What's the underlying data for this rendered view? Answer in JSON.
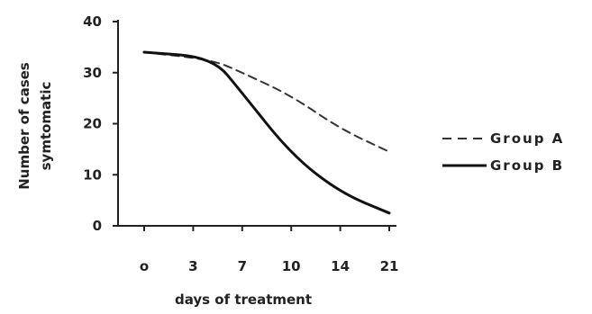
{
  "chart_data": {
    "type": "line",
    "xlabel": "days of treatment",
    "ylabel_lines": [
      "Number of cases",
      "symtomatic"
    ],
    "x_categories": [
      "o",
      "3",
      "7",
      "10",
      "14",
      "21"
    ],
    "ylim": [
      0,
      40
    ],
    "yticks": [
      "0",
      "10",
      "20",
      "30",
      "40"
    ],
    "grid": false,
    "legend_position": "right",
    "series": [
      {
        "name": "Group A",
        "style": "dashed",
        "color": "#333333",
        "points": [
          {
            "x": 0,
            "y": 34
          },
          {
            "x": 1.4,
            "y": 32.5
          },
          {
            "x": 2,
            "y": 30
          },
          {
            "x": 3,
            "y": 25.5
          },
          {
            "x": 4,
            "y": 19
          },
          {
            "x": 5,
            "y": 14.5
          }
        ]
      },
      {
        "name": "Group B",
        "style": "solid",
        "color": "#111111",
        "points": [
          {
            "x": 0,
            "y": 34
          },
          {
            "x": 1.4,
            "y": 33
          },
          {
            "x": 2,
            "y": 26
          },
          {
            "x": 3,
            "y": 14
          },
          {
            "x": 4,
            "y": 6.5
          },
          {
            "x": 5,
            "y": 2.5
          }
        ]
      }
    ]
  }
}
